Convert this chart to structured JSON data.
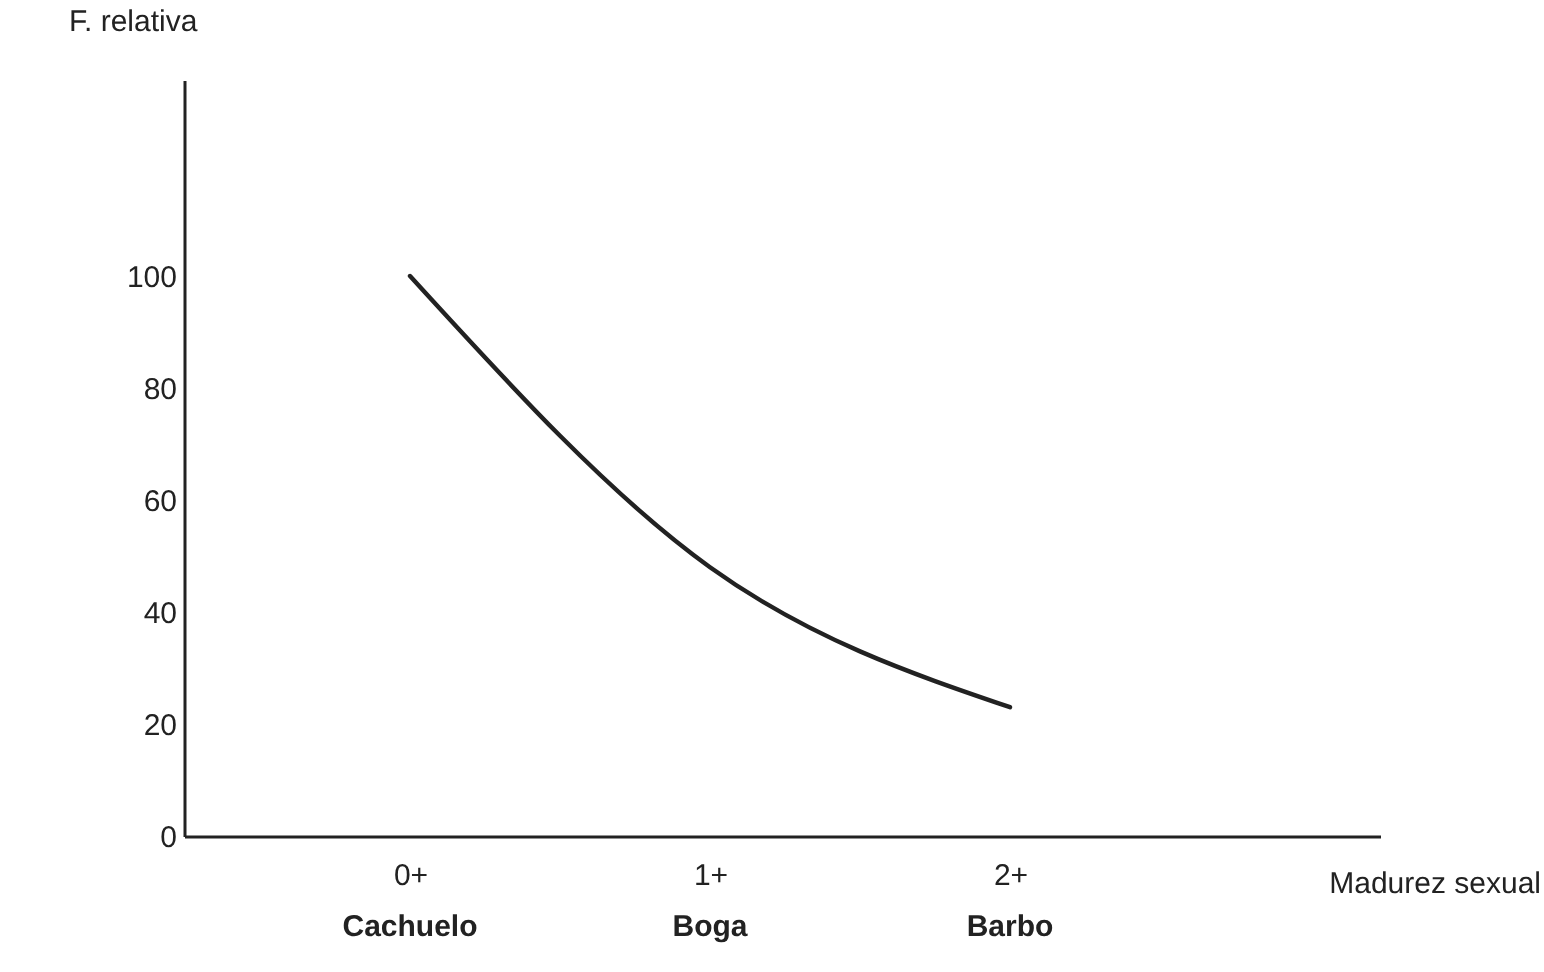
{
  "chart_data": {
    "type": "line",
    "xlabel": "Madurez sexual",
    "ylabel": "F. relativa",
    "categories": [
      "0+",
      "1+",
      "2+"
    ],
    "series": [
      {
        "color": "#222222",
        "values": [
          100,
          48,
          23
        ]
      }
    ],
    "ylim": [
      0,
      135
    ],
    "yticks": [
      0,
      20,
      40,
      60,
      80,
      100
    ],
    "annotations": [
      "Cachuelo",
      "Boga",
      "Barbo"
    ],
    "grid": false,
    "marker": "none",
    "line_style": "solid"
  }
}
